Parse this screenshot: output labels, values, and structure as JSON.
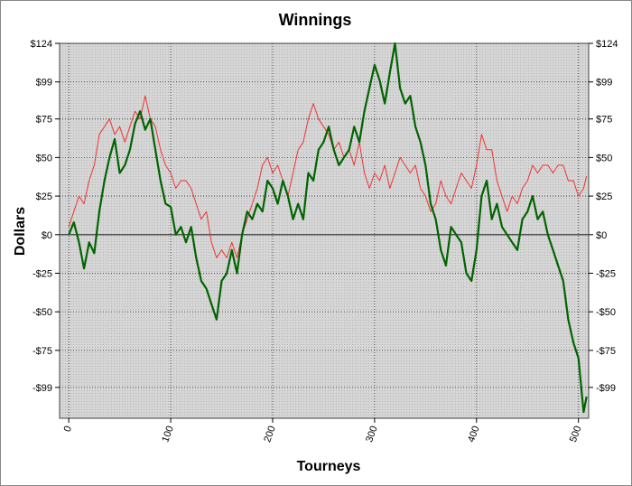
{
  "chart_data": {
    "type": "line",
    "title": "Winnings",
    "y_label": "Dollars",
    "x_label": "Tourneys",
    "xlim": [
      -9,
      510
    ],
    "xticks": [
      0,
      100,
      200,
      300,
      400,
      500
    ],
    "ylim": [
      -119,
      124
    ],
    "yticks": [
      {
        "value": 124,
        "label": "$124"
      },
      {
        "value": 99,
        "label": "$99"
      },
      {
        "value": 75,
        "label": "$75"
      },
      {
        "value": 50,
        "label": "$50"
      },
      {
        "value": 25,
        "label": "$25"
      },
      {
        "value": 0,
        "label": "$0"
      },
      {
        "value": -25,
        "label": "-$25"
      },
      {
        "value": -50,
        "label": "-$50"
      },
      {
        "value": -75,
        "label": "-$75"
      },
      {
        "value": -99,
        "label": "-$99"
      }
    ],
    "grid": true,
    "x": [
      0,
      5,
      10,
      15,
      20,
      25,
      30,
      35,
      40,
      45,
      50,
      55,
      60,
      65,
      70,
      75,
      80,
      85,
      90,
      95,
      100,
      105,
      110,
      115,
      120,
      125,
      130,
      135,
      140,
      145,
      150,
      155,
      160,
      165,
      170,
      175,
      180,
      185,
      190,
      195,
      200,
      205,
      210,
      215,
      220,
      225,
      230,
      235,
      240,
      245,
      250,
      255,
      260,
      265,
      270,
      275,
      280,
      285,
      290,
      295,
      300,
      305,
      310,
      315,
      320,
      325,
      330,
      335,
      340,
      345,
      350,
      355,
      360,
      365,
      370,
      375,
      380,
      385,
      390,
      395,
      400,
      405,
      410,
      415,
      420,
      425,
      430,
      435,
      440,
      445,
      450,
      455,
      460,
      465,
      470,
      475,
      480,
      485,
      490,
      495,
      500,
      505,
      508
    ],
    "series": [
      {
        "color": "#ee3333",
        "width": 1,
        "values": [
          5,
          15,
          25,
          20,
          35,
          45,
          65,
          70,
          75,
          65,
          70,
          60,
          70,
          80,
          75,
          90,
          75,
          70,
          55,
          45,
          40,
          30,
          35,
          35,
          30,
          20,
          10,
          15,
          -5,
          -15,
          -10,
          -15,
          -5,
          -15,
          0,
          10,
          20,
          30,
          45,
          50,
          40,
          45,
          35,
          25,
          40,
          55,
          60,
          75,
          85,
          75,
          70,
          65,
          55,
          60,
          50,
          55,
          45,
          60,
          40,
          30,
          40,
          35,
          45,
          30,
          40,
          50,
          45,
          40,
          45,
          30,
          25,
          15,
          20,
          35,
          25,
          20,
          30,
          40,
          35,
          30,
          45,
          65,
          55,
          55,
          35,
          25,
          15,
          25,
          20,
          30,
          35,
          45,
          40,
          45,
          45,
          40,
          45,
          45,
          35,
          35,
          25,
          30,
          38
        ]
      },
      {
        "color": "#006400",
        "width": 2.2,
        "values": [
          0,
          8,
          -5,
          -22,
          -5,
          -12,
          15,
          35,
          50,
          62,
          40,
          45,
          55,
          72,
          80,
          68,
          75,
          55,
          35,
          20,
          18,
          0,
          5,
          -5,
          5,
          -15,
          -30,
          -35,
          -45,
          -55,
          -30,
          -25,
          -10,
          -25,
          0,
          15,
          10,
          20,
          15,
          35,
          30,
          20,
          35,
          25,
          10,
          20,
          10,
          40,
          35,
          55,
          60,
          70,
          55,
          45,
          50,
          55,
          70,
          60,
          80,
          95,
          110,
          100,
          85,
          105,
          124,
          95,
          85,
          90,
          70,
          60,
          45,
          20,
          10,
          -10,
          -20,
          5,
          0,
          -5,
          -25,
          -30,
          -10,
          25,
          35,
          10,
          20,
          5,
          0,
          -5,
          -10,
          10,
          15,
          25,
          10,
          15,
          0,
          -10,
          -20,
          -30,
          -55,
          -70,
          -80,
          -115,
          -105
        ]
      }
    ]
  }
}
